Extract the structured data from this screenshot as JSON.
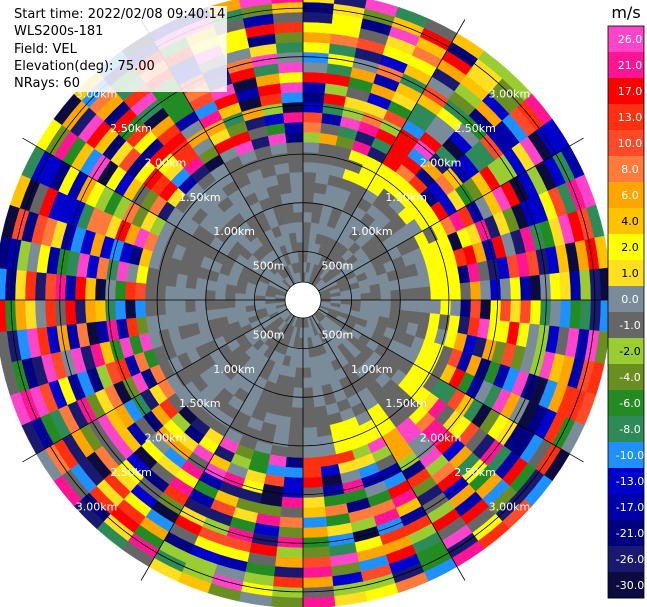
{
  "info": {
    "start_time": "Start time: 2022/02/08 09:40:14",
    "instrument": "WLS200s-181",
    "field": "Field: VEL",
    "elevation": "Elevation(deg): 75.00",
    "nrays": "NRays: 60"
  },
  "colorbar": {
    "unit": "m/s",
    "ticks": [
      "26.0",
      "21.0",
      "17.0",
      "13.0",
      "10.0",
      "8.0",
      "6.0",
      "4.0",
      "2.0",
      "1.0",
      "0.0",
      "-1.0",
      "-2.0",
      "-4.0",
      "-6.0",
      "-8.0",
      "-10.0",
      "-13.0",
      "-17.0",
      "-21.0",
      "-26.0",
      "-30.0"
    ],
    "colors": [
      "#ff44cc",
      "#ff1493",
      "#ff0000",
      "#ff3010",
      "#ff4a2a",
      "#ff7b3b",
      "#ffa500",
      "#ffc300",
      "#ffff00",
      "#ffe020",
      "#7a8c9a",
      "#666666",
      "#9acd32",
      "#6b8e23",
      "#228b22",
      "#2e8b57",
      "#1e90ff",
      "#0000cd",
      "#0000aa",
      "#000080",
      "#191970",
      "#0b0b40"
    ]
  },
  "chart_data": {
    "type": "heatmap",
    "subtype": "ppi-polar",
    "field": "VEL",
    "units": "m/s",
    "value_range": [
      -30.0,
      26.0
    ],
    "nrays": 60,
    "range_ring_labels": [
      "500m",
      "1.00km",
      "1.50km",
      "2.00km",
      "2.50km",
      "3.00km"
    ],
    "range_rings_m": [
      500,
      1000,
      1500,
      2000,
      2500,
      3000
    ],
    "max_range_m": 3000,
    "grid": true,
    "spokes_deg": [
      0,
      30,
      60,
      90,
      120,
      150,
      180,
      210,
      240,
      270,
      300,
      330
    ],
    "inner_near_zero_radius_m": 1700
  }
}
